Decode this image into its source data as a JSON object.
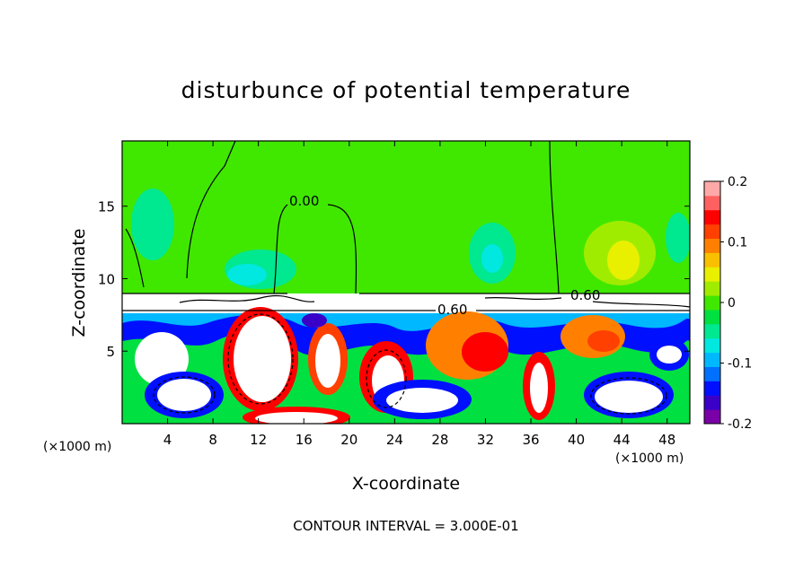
{
  "chart_data": {
    "type": "heatmap",
    "title": "disturbunce of potential temperature",
    "xlabel": "X-coordinate",
    "ylabel": "Z-coordinate",
    "x_unit": "(×1000 m)",
    "footer": "CONTOUR INTERVAL = 3.000E-01",
    "x_ticks": [
      "4",
      "8",
      "12",
      "16",
      "20",
      "24",
      "28",
      "32",
      "36",
      "40",
      "44",
      "48"
    ],
    "x_tick_values": [
      4,
      8,
      12,
      16,
      20,
      24,
      28,
      32,
      36,
      40,
      44,
      48
    ],
    "y_ticks": [
      "5",
      "10",
      "15"
    ],
    "y_tick_values": [
      5,
      10,
      15
    ],
    "xlim": [
      0,
      50
    ],
    "ylim": [
      0,
      19.5
    ],
    "colorbar": {
      "labels": [
        "0.2",
        "0.1",
        "0",
        "-0.1",
        "-0.2"
      ],
      "values": [
        0.2,
        0.1,
        0,
        -0.1,
        -0.2
      ],
      "range": [
        -0.2,
        0.2
      ],
      "colors": [
        "#7a00a8",
        "#3a00c8",
        "#0010ff",
        "#0070ff",
        "#00b8ff",
        "#00e8e0",
        "#00e890",
        "#00e040",
        "#40e800",
        "#a0ec00",
        "#e8f000",
        "#f8c000",
        "#ff8000",
        "#ff4000",
        "#ff0000",
        "#ff6060",
        "#ffa8a8"
      ]
    },
    "contour_labels": [
      "0.00",
      "0.60",
      "0.60"
    ]
  }
}
